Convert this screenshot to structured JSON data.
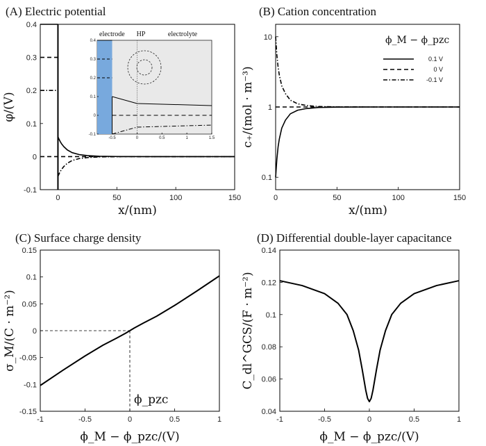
{
  "chart_data": [
    {
      "id": "A",
      "type": "line",
      "title": "(A)  Electric potential",
      "xlabel": "x/(nm)",
      "ylabel": "φ/(V)",
      "xlim": [
        -15,
        150
      ],
      "ylim": [
        -0.1,
        0.4
      ],
      "xticks": [
        0,
        50,
        100,
        150
      ],
      "yticks": [
        -0.1,
        0,
        0.1,
        0.2,
        0.3,
        0.4
      ],
      "series": [
        {
          "name": "0.1 V",
          "style": "solid",
          "electrode_value": 0.4,
          "x": [
            0,
            1,
            2,
            3,
            5,
            8,
            12,
            18,
            25,
            35,
            50,
            75,
            100,
            150
          ],
          "y": [
            0.06,
            0.052,
            0.045,
            0.039,
            0.03,
            0.02,
            0.012,
            0.006,
            0.003,
            0.001,
            0.0003,
            0,
            0,
            0
          ]
        },
        {
          "name": "0 V",
          "style": "dashed",
          "electrode_value": 0.3,
          "x": [
            -15,
            150
          ],
          "y": [
            0,
            0
          ]
        },
        {
          "name": "-0.1 V",
          "style": "dashdot",
          "electrode_value": 0.2,
          "x": [
            0,
            1,
            2,
            3,
            5,
            8,
            12,
            18,
            25,
            35,
            50,
            75,
            100,
            150
          ],
          "y": [
            -0.06,
            -0.052,
            -0.045,
            -0.039,
            -0.03,
            -0.02,
            -0.012,
            -0.006,
            -0.003,
            -0.001,
            -0.0003,
            0,
            0,
            0
          ]
        }
      ],
      "inset": {
        "labels": {
          "electrode": "electrode",
          "hp": "HP",
          "electrolyte": "electrolyte"
        },
        "xlim": [
          -0.8,
          1.5
        ],
        "ylim": [
          -0.1,
          0.4
        ],
        "xticks": [
          -0.5,
          0,
          0.5,
          1,
          1.5
        ],
        "yticks": [
          -0.1,
          0,
          0.1,
          0.2,
          0.3,
          0.4
        ],
        "series": [
          {
            "name": "0.1 V",
            "x": [
              -0.5,
              0,
              1.5
            ],
            "y": [
              0.1,
              0.063,
              0.052
            ]
          },
          {
            "name": "0 V",
            "x": [
              -0.5,
              1.5
            ],
            "y": [
              0,
              0
            ]
          },
          {
            "name": "-0.1 V",
            "x": [
              -0.5,
              0,
              1.5
            ],
            "y": [
              -0.1,
              -0.063,
              -0.052
            ]
          }
        ]
      }
    },
    {
      "id": "B",
      "type": "line",
      "title": "(B)  Cation concentration",
      "xlabel": "x/(nm)",
      "ylabel": "c₊/(mol · m⁻³)",
      "xscale": "linear",
      "yscale": "log",
      "xlim": [
        0,
        150
      ],
      "ylim": [
        0.0667,
        15
      ],
      "xticks": [
        0,
        50,
        100,
        150
      ],
      "yticks": [
        0.1,
        1,
        10
      ],
      "legend_title": "ϕ_M − ϕ_pzc",
      "series": [
        {
          "name": "0.1 V",
          "style": "solid",
          "x": [
            0,
            1,
            2,
            3,
            5,
            8,
            12,
            18,
            25,
            35,
            50,
            75,
            100,
            150
          ],
          "y": [
            0.1,
            0.18,
            0.27,
            0.35,
            0.5,
            0.65,
            0.8,
            0.9,
            0.95,
            0.985,
            0.997,
            1,
            1,
            1
          ]
        },
        {
          "name": "0 V",
          "style": "dashed",
          "x": [
            0,
            150
          ],
          "y": [
            1,
            1
          ]
        },
        {
          "name": "-0.1 V",
          "style": "dashdot",
          "x": [
            0,
            1,
            2,
            3,
            5,
            8,
            12,
            18,
            25,
            35,
            50,
            75,
            100,
            150
          ],
          "y": [
            10,
            5.5,
            3.7,
            2.85,
            2.0,
            1.55,
            1.25,
            1.11,
            1.05,
            1.015,
            1.003,
            1,
            1,
            1
          ]
        }
      ]
    },
    {
      "id": "C",
      "type": "line",
      "title": "(C)  Surface charge density",
      "xlabel": "ϕ_M − ϕ_pzc/(V)",
      "ylabel": "σ_M/(C · m⁻²)",
      "xlim": [
        -1,
        1
      ],
      "ylim": [
        -0.15,
        0.15
      ],
      "xticks": [
        -1,
        -0.5,
        0,
        0.5,
        1
      ],
      "yticks": [
        -0.15,
        -0.1,
        -0.05,
        0,
        0.05,
        0.1,
        0.15
      ],
      "annotation": "ϕ_pzc",
      "series": [
        {
          "name": "σ",
          "x": [
            -1,
            -0.75,
            -0.5,
            -0.3,
            -0.15,
            -0.05,
            0,
            0.05,
            0.15,
            0.3,
            0.5,
            0.75,
            1
          ],
          "y": [
            -0.102,
            -0.074,
            -0.047,
            -0.027,
            -0.014,
            -0.005,
            0,
            0.005,
            0.014,
            0.027,
            0.047,
            0.074,
            0.102
          ]
        }
      ]
    },
    {
      "id": "D",
      "type": "line",
      "title": "(D)  Differential double-layer capacitance",
      "xlabel": "ϕ_M − ϕ_pzc/(V)",
      "ylabel": "C_dl^GCS/(F · m⁻²)",
      "xlim": [
        -1,
        1
      ],
      "ylim": [
        0.04,
        0.14
      ],
      "xticks": [
        -1,
        -0.5,
        0,
        0.5,
        1
      ],
      "yticks": [
        0.04,
        0.06,
        0.08,
        0.1,
        0.12,
        0.14
      ],
      "series": [
        {
          "name": "C",
          "x": [
            -1,
            -0.75,
            -0.5,
            -0.35,
            -0.25,
            -0.18,
            -0.12,
            -0.08,
            -0.04,
            -0.02,
            0,
            0.02,
            0.04,
            0.08,
            0.12,
            0.18,
            0.25,
            0.35,
            0.5,
            0.75,
            1
          ],
          "y": [
            0.121,
            0.118,
            0.113,
            0.107,
            0.1,
            0.09,
            0.078,
            0.066,
            0.053,
            0.048,
            0.046,
            0.048,
            0.053,
            0.066,
            0.078,
            0.09,
            0.1,
            0.107,
            0.113,
            0.118,
            0.121
          ]
        }
      ]
    }
  ]
}
